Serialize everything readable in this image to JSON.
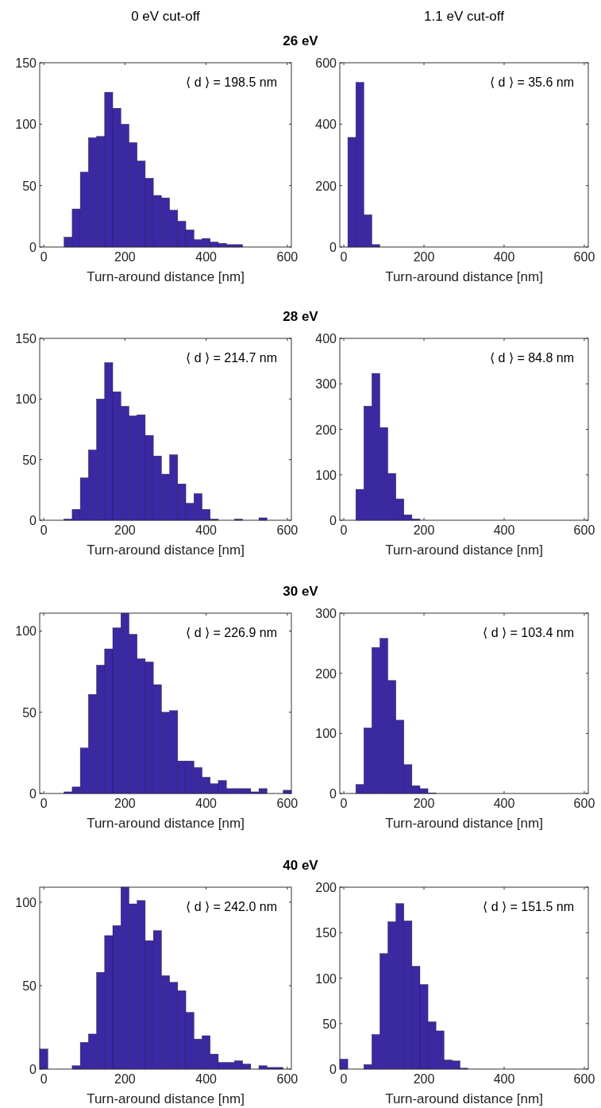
{
  "chart_data": [
    {
      "type": "histogram",
      "title": "26 eV",
      "subtitle": "0 eV cut-off",
      "xlabel": "Turn-around distance [nm]",
      "annotations": [
        "⟨ d ⟩ = 198.5 nm"
      ],
      "color": "#3a28a6",
      "bins": [
        -10,
        10,
        30,
        50,
        70,
        90,
        110,
        130,
        150,
        170,
        190,
        210,
        230,
        250,
        270,
        290,
        310,
        330,
        350,
        370,
        390,
        410,
        430,
        450,
        470,
        490,
        510,
        530,
        550,
        570,
        590,
        610
      ],
      "values": [
        0,
        0,
        0,
        8,
        31,
        61,
        89,
        90,
        126,
        113,
        100,
        85,
        70,
        56,
        42,
        40,
        30,
        21,
        14,
        6,
        7,
        4,
        3,
        2,
        2,
        0,
        0,
        0,
        0,
        0,
        0
      ],
      "xlim": [
        -10,
        610
      ],
      "xticks": [
        0,
        200,
        400,
        600
      ],
      "ylim": [
        0,
        150
      ],
      "yticks": [
        0,
        50,
        100,
        150
      ]
    },
    {
      "type": "histogram",
      "subtitle": "1.1 eV cut-off",
      "xlabel": "Turn-around distance [nm]",
      "annotations": [
        "⟨ d ⟩ = 35.6 nm"
      ],
      "color": "#3a28a6",
      "bins": [
        -10,
        10,
        30,
        50,
        70,
        90,
        110,
        130,
        150,
        170,
        190,
        210,
        230,
        250,
        270,
        290,
        310,
        330,
        350,
        370,
        390,
        410,
        430,
        450,
        470,
        490,
        510,
        530,
        550,
        570,
        590,
        610
      ],
      "values": [
        0,
        357,
        536,
        105,
        8,
        0,
        0,
        0,
        0,
        0,
        0,
        0,
        0,
        0,
        0,
        0,
        0,
        0,
        0,
        0,
        0,
        0,
        0,
        0,
        0,
        0,
        0,
        0,
        0,
        0,
        0
      ],
      "xlim": [
        -10,
        610
      ],
      "xticks": [
        0,
        200,
        400,
        600
      ],
      "ylim": [
        0,
        600
      ],
      "yticks": [
        0,
        200,
        400,
        600
      ]
    },
    {
      "type": "histogram",
      "title": "28 eV",
      "xlabel": "Turn-around distance [nm]",
      "annotations": [
        "⟨ d ⟩ = 214.7 nm"
      ],
      "color": "#3a28a6",
      "bins": [
        -10,
        10,
        30,
        50,
        70,
        90,
        110,
        130,
        150,
        170,
        190,
        210,
        230,
        250,
        270,
        290,
        310,
        330,
        350,
        370,
        390,
        410,
        430,
        450,
        470,
        490,
        510,
        530,
        550,
        570,
        590,
        610
      ],
      "values": [
        0,
        0,
        0,
        1,
        9,
        35,
        58,
        100,
        130,
        106,
        94,
        86,
        87,
        70,
        53,
        38,
        54,
        30,
        14,
        22,
        9,
        1,
        0,
        0,
        1,
        0,
        0,
        2,
        0,
        0,
        0
      ],
      "xlim": [
        -10,
        610
      ],
      "xticks": [
        0,
        200,
        400,
        600
      ],
      "ylim": [
        0,
        150
      ],
      "yticks": [
        0,
        50,
        100,
        150
      ]
    },
    {
      "type": "histogram",
      "xlabel": "Turn-around distance [nm]",
      "annotations": [
        "⟨ d ⟩ = 84.8 nm"
      ],
      "color": "#3a28a6",
      "bins": [
        -10,
        10,
        30,
        50,
        70,
        90,
        110,
        130,
        150,
        170,
        190,
        210,
        230,
        250,
        270,
        290,
        310,
        330,
        350,
        370,
        390,
        410,
        430,
        450,
        470,
        490,
        510,
        530,
        550,
        570,
        590,
        610
      ],
      "values": [
        0,
        0,
        68,
        251,
        323,
        204,
        103,
        47,
        12,
        3,
        0,
        0,
        0,
        0,
        0,
        0,
        0,
        0,
        0,
        0,
        0,
        0,
        0,
        0,
        0,
        0,
        0,
        0,
        0,
        0,
        0
      ],
      "xlim": [
        -10,
        610
      ],
      "xticks": [
        0,
        200,
        400,
        600
      ],
      "ylim": [
        0,
        400
      ],
      "yticks": [
        0,
        100,
        200,
        300,
        400
      ]
    },
    {
      "type": "histogram",
      "title": "30 eV",
      "xlabel": "Turn-around distance [nm]",
      "annotations": [
        "⟨ d ⟩ = 226.9 nm"
      ],
      "color": "#3a28a6",
      "bins": [
        -10,
        10,
        30,
        50,
        70,
        90,
        110,
        130,
        150,
        170,
        190,
        210,
        230,
        250,
        270,
        290,
        310,
        330,
        350,
        370,
        390,
        410,
        430,
        450,
        470,
        490,
        510,
        530,
        550,
        570,
        590,
        610
      ],
      "values": [
        0,
        0,
        0,
        1,
        4,
        28,
        61,
        79,
        89,
        102,
        111,
        98,
        83,
        81,
        67,
        50,
        51,
        20,
        20,
        16,
        10,
        6,
        8,
        3,
        3,
        3,
        1,
        3,
        0,
        0,
        2
      ],
      "xlim": [
        -10,
        610
      ],
      "xticks": [
        0,
        200,
        400,
        600
      ],
      "ylim": [
        0,
        111
      ],
      "yticks": [
        0,
        50,
        100
      ]
    },
    {
      "type": "histogram",
      "xlabel": "Turn-around distance [nm]",
      "annotations": [
        "⟨ d ⟩ = 103.4 nm"
      ],
      "color": "#3a28a6",
      "bins": [
        -10,
        10,
        30,
        50,
        70,
        90,
        110,
        130,
        150,
        170,
        190,
        210,
        230,
        250,
        270,
        290,
        310,
        330,
        350,
        370,
        390,
        410,
        430,
        450,
        470,
        490,
        510,
        530,
        550,
        570,
        590,
        610
      ],
      "values": [
        0,
        0,
        15,
        109,
        243,
        258,
        188,
        122,
        48,
        13,
        8,
        1,
        0,
        0,
        0,
        0,
        0,
        0,
        0,
        0,
        0,
        0,
        0,
        0,
        0,
        0,
        0,
        0,
        0,
        0,
        0
      ],
      "xlim": [
        -10,
        610
      ],
      "xticks": [
        0,
        200,
        400,
        600
      ],
      "ylim": [
        0,
        300
      ],
      "yticks": [
        0,
        100,
        200,
        300
      ]
    },
    {
      "type": "histogram",
      "title": "40 eV",
      "xlabel": "Turn-around distance [nm]",
      "annotations": [
        "⟨ d ⟩ = 242.0 nm"
      ],
      "color": "#3a28a6",
      "bins": [
        -10,
        10,
        30,
        50,
        70,
        90,
        110,
        130,
        150,
        170,
        190,
        210,
        230,
        250,
        270,
        290,
        310,
        330,
        350,
        370,
        390,
        410,
        430,
        450,
        470,
        490,
        510,
        530,
        550,
        570,
        590,
        610
      ],
      "values": [
        12,
        0,
        0,
        0,
        2,
        16,
        21,
        58,
        80,
        86,
        109,
        99,
        101,
        77,
        83,
        56,
        52,
        47,
        34,
        18,
        20,
        9,
        4,
        4,
        5,
        3,
        0,
        2,
        1,
        1,
        0
      ],
      "xlim": [
        -10,
        610
      ],
      "xticks": [
        0,
        200,
        400,
        600
      ],
      "ylim": [
        0,
        109
      ],
      "yticks": [
        0,
        50,
        100
      ]
    },
    {
      "type": "histogram",
      "xlabel": "Turn-around distance [nm]",
      "annotations": [
        "⟨ d ⟩ = 151.5 nm"
      ],
      "color": "#3a28a6",
      "bins": [
        -10,
        10,
        30,
        50,
        70,
        90,
        110,
        130,
        150,
        170,
        190,
        210,
        230,
        250,
        270,
        290,
        310,
        330,
        350,
        370,
        390,
        410,
        430,
        450,
        470,
        490,
        510,
        530,
        550,
        570,
        590,
        610
      ],
      "values": [
        11,
        0,
        0,
        5,
        38,
        127,
        162,
        182,
        163,
        113,
        93,
        52,
        42,
        10,
        9,
        1,
        0,
        0,
        0,
        0,
        0,
        0,
        0,
        0,
        0,
        0,
        0,
        0,
        0,
        0,
        0
      ],
      "xlim": [
        -10,
        610
      ],
      "xticks": [
        0,
        200,
        400,
        600
      ],
      "ylim": [
        0,
        200
      ],
      "yticks": [
        0,
        50,
        100,
        150,
        200
      ]
    }
  ]
}
